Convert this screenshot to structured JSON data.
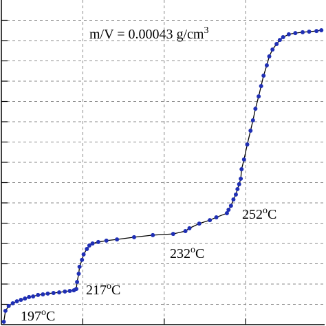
{
  "chart_data": {
    "type": "line",
    "annotations": [
      {
        "text": "m/V = 0.00043 g/cm",
        "sup": "3"
      },
      {
        "text": "197",
        "sup": "o",
        "tail": "C"
      },
      {
        "text": "217",
        "sup": "o",
        "tail": "C"
      },
      {
        "text": "232",
        "sup": "o",
        "tail": "C"
      },
      {
        "text": "252",
        "sup": "o",
        "tail": "C"
      }
    ],
    "x": [
      0.03,
      0.05,
      0.09,
      0.14,
      0.19,
      0.24,
      0.29,
      0.34,
      0.39,
      0.45,
      0.51,
      0.57,
      0.64,
      0.71,
      0.78,
      0.84,
      0.89,
      0.92,
      0.93,
      0.95,
      0.96,
      0.99,
      1.01,
      1.05,
      1.08,
      1.12,
      1.19,
      1.29,
      1.42,
      1.63,
      1.86,
      2.11,
      2.26,
      2.31,
      2.43,
      2.56,
      2.64,
      2.77,
      2.79,
      2.82,
      2.85,
      2.88,
      2.9,
      2.92,
      2.94,
      2.95,
      2.98,
      3.02,
      3.06,
      3.09,
      3.12,
      3.16,
      3.19,
      3.22,
      3.26,
      3.29,
      3.33,
      3.38,
      3.42,
      3.46,
      3.53,
      3.61,
      3.7,
      3.78,
      3.87,
      3.93
    ],
    "values": [
      0.14,
      0.68,
      0.92,
      1.05,
      1.15,
      1.22,
      1.29,
      1.36,
      1.39,
      1.46,
      1.49,
      1.53,
      1.56,
      1.59,
      1.63,
      1.66,
      1.69,
      1.76,
      2.1,
      2.51,
      2.85,
      3.19,
      3.46,
      3.73,
      3.9,
      4.0,
      4.07,
      4.14,
      4.2,
      4.31,
      4.41,
      4.47,
      4.61,
      4.75,
      4.98,
      5.15,
      5.29,
      5.49,
      5.66,
      5.86,
      6.17,
      6.41,
      6.68,
      6.92,
      7.19,
      7.66,
      8.14,
      8.88,
      9.56,
      10.07,
      10.64,
      11.25,
      11.76,
      12.27,
      12.78,
      13.22,
      13.56,
      13.83,
      14.03,
      14.17,
      14.31,
      14.37,
      14.41,
      14.44,
      14.47,
      14.51
    ],
    "color": "#1f2fb5",
    "line_color": "#000000",
    "xlim": [
      0,
      3.97
    ],
    "xticks": [
      1,
      2,
      3
    ],
    "ylim": [
      0,
      16
    ],
    "yticks": [
      1,
      2,
      3,
      4,
      5,
      6,
      7,
      8,
      9,
      10,
      11,
      12,
      13,
      14,
      15
    ],
    "grid": true
  }
}
